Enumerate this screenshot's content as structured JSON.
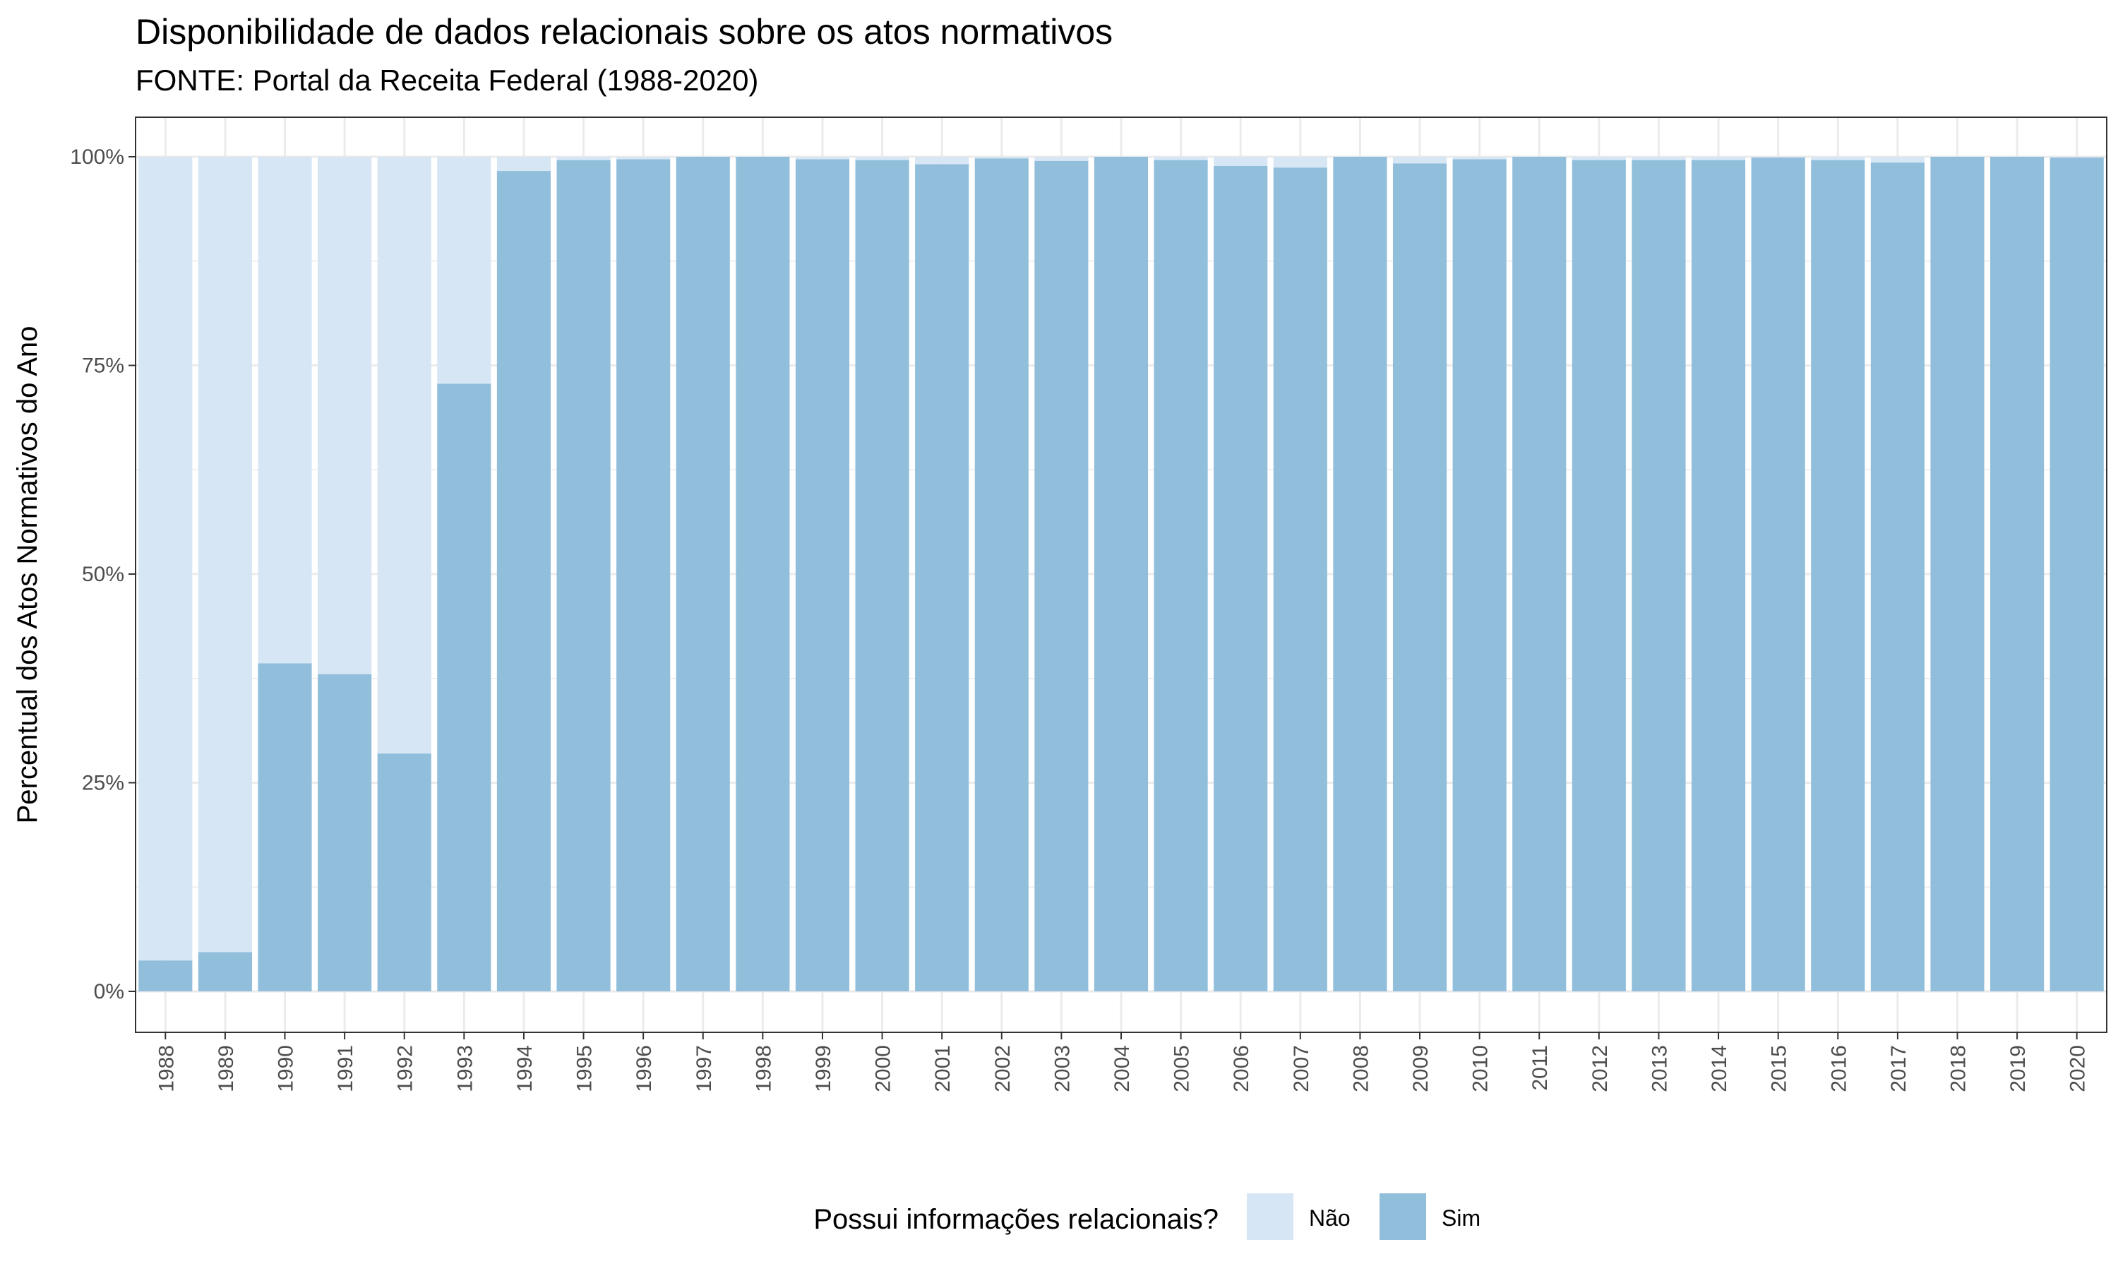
{
  "chart_data": {
    "type": "bar",
    "stacked": true,
    "title": "Disponibilidade de dados relacionais sobre os atos normativos",
    "subtitle": "FONTE: Portal da Receita Federal (1988-2020)",
    "xlabel": "",
    "ylabel": "Percentual dos Atos Normativos do Ano",
    "ylim": [
      0,
      100
    ],
    "yticks": [
      "0%",
      "25%",
      "50%",
      "75%",
      "100%"
    ],
    "categories": [
      "1988",
      "1989",
      "1990",
      "1991",
      "1992",
      "1993",
      "1994",
      "1995",
      "1996",
      "1997",
      "1998",
      "1999",
      "2000",
      "2001",
      "2002",
      "2003",
      "2004",
      "2005",
      "2006",
      "2007",
      "2008",
      "2009",
      "2010",
      "2011",
      "2012",
      "2013",
      "2014",
      "2015",
      "2016",
      "2017",
      "2018",
      "2019",
      "2020"
    ],
    "series": [
      {
        "name": "Sim",
        "color": "#91bfdb",
        "values": [
          3.7,
          4.7,
          39.3,
          38.0,
          28.5,
          72.8,
          98.3,
          99.6,
          99.7,
          100,
          100,
          99.7,
          99.6,
          99.1,
          99.8,
          99.5,
          100,
          99.6,
          98.9,
          98.7,
          100,
          99.2,
          99.7,
          100,
          99.6,
          99.6,
          99.6,
          99.9,
          99.6,
          99.3,
          100,
          100,
          99.9
        ]
      },
      {
        "name": "Não",
        "color": "#d7e6f5",
        "values": [
          96.3,
          95.3,
          60.7,
          62.0,
          71.5,
          27.2,
          1.7,
          0.4,
          0.3,
          0,
          0,
          0.3,
          0.4,
          0.9,
          0.2,
          0.5,
          0,
          0.4,
          1.1,
          1.3,
          0,
          0.8,
          0.3,
          0,
          0.4,
          0.4,
          0.4,
          0.1,
          0.4,
          0.7,
          0,
          0,
          0.1
        ]
      }
    ],
    "legend": {
      "title": "Possui informações relacionais?",
      "position": "bottom",
      "items": [
        {
          "label": "Não",
          "color": "#d7e6f5"
        },
        {
          "label": "Sim",
          "color": "#91bfdb"
        }
      ]
    },
    "grid": true
  }
}
